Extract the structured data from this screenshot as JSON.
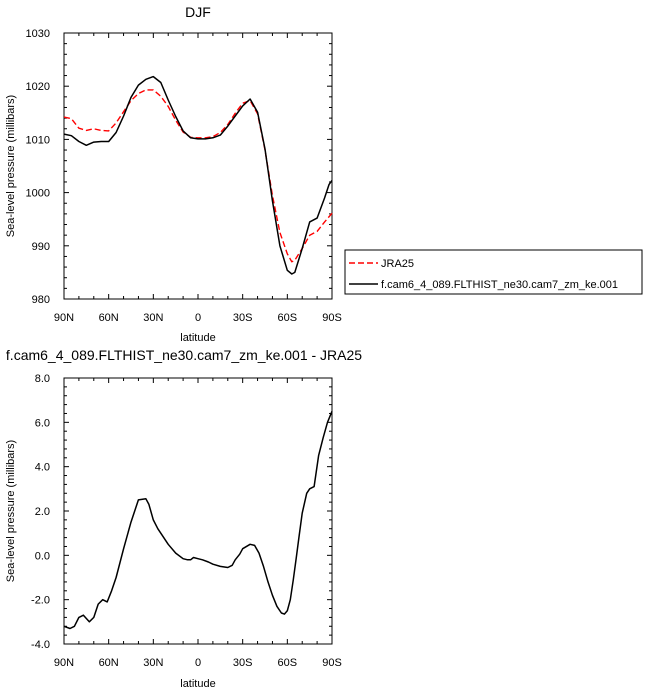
{
  "chart_data": [
    {
      "type": "line",
      "title": "DJF",
      "xlabel": "latitude",
      "ylabel": "Sea-level pressure (millibars)",
      "xlim": [
        90,
        -90
      ],
      "ylim": [
        980,
        1030
      ],
      "xticks": [
        "90N",
        "60N",
        "30N",
        "0",
        "30S",
        "60S",
        "90S"
      ],
      "yticks": [
        "980",
        "990",
        "1000",
        "1010",
        "1020",
        "1030"
      ],
      "grid": false,
      "legend_placement": "outside-right",
      "series": [
        {
          "name": "JRA25",
          "color": "#ff0000",
          "dash": "dashed",
          "x": [
            90,
            85,
            80,
            75,
            70,
            65,
            60,
            55,
            50,
            45,
            40,
            35,
            30,
            25,
            20,
            15,
            10,
            5,
            0,
            -5,
            -10,
            -15,
            -20,
            -25,
            -30,
            -35,
            -40,
            -45,
            -50,
            -55,
            -60,
            -63,
            -65,
            -70,
            -75,
            -80,
            -85,
            -90
          ],
          "y": [
            1014.2,
            1013.9,
            1012.1,
            1011.7,
            1012.0,
            1011.7,
            1011.6,
            1013.1,
            1015.2,
            1017.3,
            1018.6,
            1019.3,
            1019.3,
            1018.1,
            1016.2,
            1013.6,
            1011.4,
            1010.4,
            1010.3,
            1010.3,
            1010.5,
            1011.3,
            1012.8,
            1014.9,
            1016.8,
            1017.3,
            1014.8,
            1008.0,
            999.5,
            992.5,
            988.5,
            987.0,
            987.3,
            989.5,
            992.0,
            992.7,
            994.5,
            996.1
          ]
        },
        {
          "name": "f.cam6_4_089.FLTHIST_ne30.cam7_zm_ke.001",
          "color": "#000000",
          "dash": "solid",
          "x": [
            90,
            85,
            80,
            75,
            70,
            65,
            60,
            55,
            50,
            45,
            40,
            35,
            30,
            25,
            20,
            15,
            10,
            5,
            0,
            -5,
            -10,
            -15,
            -20,
            -25,
            -30,
            -35,
            -40,
            -45,
            -50,
            -55,
            -60,
            -63,
            -65,
            -70,
            -75,
            -80,
            -85,
            -88,
            -90
          ],
          "y": [
            1011.0,
            1010.7,
            1009.6,
            1008.9,
            1009.5,
            1009.6,
            1009.6,
            1011.3,
            1014.4,
            1017.9,
            1020.2,
            1021.3,
            1021.8,
            1020.7,
            1017.4,
            1014.3,
            1011.6,
            1010.3,
            1010.1,
            1010.1,
            1010.3,
            1010.8,
            1012.5,
            1014.4,
            1016.3,
            1017.6,
            1015.1,
            1008.2,
            998.5,
            990.0,
            985.4,
            984.7,
            985.0,
            989.5,
            994.5,
            995.2,
            999.0,
            1001.5,
            1002.3
          ]
        }
      ]
    },
    {
      "type": "line",
      "title": "f.cam6_4_089.FLTHIST_ne30.cam7_zm_ke.001 - JRA25",
      "xlabel": "latitude",
      "ylabel": "Sea-level pressure (millibars)",
      "xlim": [
        90,
        -90
      ],
      "ylim": [
        -4.0,
        8.0
      ],
      "xticks": [
        "90N",
        "60N",
        "30N",
        "0",
        "30S",
        "60S",
        "90S"
      ],
      "yticks": [
        "-4.0",
        "-2.0",
        "0.0",
        "2.0",
        "4.0",
        "6.0",
        "8.0"
      ],
      "grid": false,
      "series": [
        {
          "color": "#000000",
          "dash": "solid",
          "x": [
            90,
            86,
            83,
            80,
            77,
            73,
            70,
            67,
            64,
            61,
            58,
            55,
            50,
            45,
            40,
            35,
            33,
            30,
            27,
            24,
            20,
            15,
            10,
            7,
            5,
            3,
            0,
            -3,
            -7,
            -10,
            -15,
            -20,
            -23,
            -25,
            -28,
            -30,
            -35,
            -38,
            -41,
            -44,
            -47,
            -50,
            -53,
            -56,
            -58,
            -60,
            -62,
            -64,
            -66,
            -68,
            -70,
            -73,
            -75,
            -78,
            -81,
            -84,
            -87,
            -90
          ],
          "y": [
            -3.2,
            -3.3,
            -3.2,
            -2.8,
            -2.7,
            -3.0,
            -2.8,
            -2.2,
            -2.0,
            -2.1,
            -1.6,
            -1.0,
            0.3,
            1.5,
            2.5,
            2.55,
            2.3,
            1.6,
            1.2,
            0.9,
            0.5,
            0.1,
            -0.15,
            -0.2,
            -0.2,
            -0.1,
            -0.15,
            -0.2,
            -0.3,
            -0.4,
            -0.5,
            -0.55,
            -0.45,
            -0.2,
            0.05,
            0.3,
            0.5,
            0.45,
            0.1,
            -0.5,
            -1.2,
            -1.8,
            -2.3,
            -2.6,
            -2.65,
            -2.5,
            -2.0,
            -1.1,
            -0.1,
            0.9,
            1.9,
            2.8,
            3.0,
            3.1,
            4.5,
            5.3,
            6.0,
            6.5
          ]
        }
      ]
    }
  ]
}
